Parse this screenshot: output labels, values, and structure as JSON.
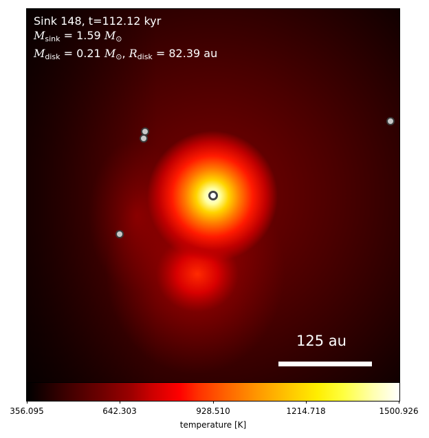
{
  "overlay": {
    "title": "Sink 148, t=112.12 kyr",
    "msink_symbol": "M",
    "msink_sub": "sink",
    "msink_value": " = 1.59 ",
    "msink_unit": "M",
    "msink_unit_sub": "⊙",
    "mdisk_symbol": "M",
    "mdisk_sub": "disk",
    "mdisk_value": " = 0.21 ",
    "mdisk_unit": "M",
    "mdisk_unit_sub": "⊙",
    "mdisk_sep": ", ",
    "rdisk_symbol": "R",
    "rdisk_sub": "disk",
    "rdisk_value": " = 82.39 au"
  },
  "scalebar": {
    "label": "125 au"
  },
  "colorbar": {
    "label": "temperature [K]",
    "ticks": [
      "356.095",
      "642.303",
      "928.510",
      "1214.718",
      "1500.926"
    ]
  },
  "colors": {
    "background": "#230000",
    "hot_core": "#ffffff",
    "sink_fill": "#c8c8c8",
    "sink_edge": "#3a3a3a"
  }
}
